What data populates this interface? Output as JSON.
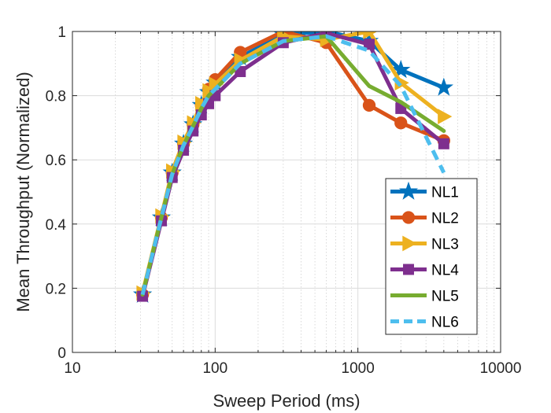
{
  "chart_data": {
    "type": "line",
    "title": "",
    "xlabel": "Sweep Period (ms)",
    "ylabel": "Mean Throughput (Normalized)",
    "xscale": "log",
    "xlim": [
      10,
      10000
    ],
    "ylim": [
      0,
      1
    ],
    "xticks": [
      10,
      100,
      1000,
      10000
    ],
    "xtick_labels": [
      "10",
      "100",
      "1000",
      "10000"
    ],
    "yticks": [
      0,
      0.2,
      0.4,
      0.6,
      0.8,
      1
    ],
    "ytick_labels": [
      "0",
      "0.2",
      "0.4",
      "0.6",
      "0.8",
      "1"
    ],
    "grid": "on (major and minor)",
    "legend_position": "bottom-right",
    "series": [
      {
        "name": "NL1",
        "color": "#0072BD",
        "marker": "star",
        "dash": "solid",
        "x": [
          31,
          42,
          50,
          60,
          70,
          80,
          90,
          100,
          150,
          300,
          600,
          1200,
          2000,
          4000
        ],
        "values": [
          0.18,
          0.42,
          0.56,
          0.65,
          0.71,
          0.77,
          0.81,
          0.84,
          0.92,
          0.99,
          1.0,
          0.97,
          0.88,
          0.825
        ]
      },
      {
        "name": "NL2",
        "color": "#D95319",
        "marker": "circle",
        "dash": "solid",
        "x": [
          31,
          42,
          50,
          60,
          70,
          80,
          90,
          100,
          150,
          300,
          600,
          1200,
          2000,
          4000
        ],
        "values": [
          0.18,
          0.42,
          0.56,
          0.65,
          0.71,
          0.77,
          0.82,
          0.85,
          0.935,
          1.0,
          0.965,
          0.77,
          0.715,
          0.66
        ]
      },
      {
        "name": "NL3",
        "color": "#EDB120",
        "marker": "triangle-right",
        "dash": "solid",
        "x": [
          31,
          42,
          50,
          60,
          70,
          80,
          90,
          100,
          150,
          300,
          600,
          1200,
          2000,
          4000
        ],
        "values": [
          0.185,
          0.425,
          0.565,
          0.655,
          0.715,
          0.775,
          0.815,
          0.835,
          0.91,
          0.985,
          0.975,
          1.0,
          0.84,
          0.735
        ]
      },
      {
        "name": "NL4",
        "color": "#7E2F8E",
        "marker": "square",
        "dash": "solid",
        "x": [
          31,
          42,
          50,
          60,
          70,
          80,
          90,
          100,
          150,
          300,
          600,
          1200,
          2000,
          4000
        ],
        "values": [
          0.175,
          0.41,
          0.545,
          0.63,
          0.69,
          0.74,
          0.775,
          0.8,
          0.875,
          0.965,
          0.995,
          0.96,
          0.76,
          0.65
        ]
      },
      {
        "name": "NL5",
        "color": "#77AC30",
        "marker": "none",
        "dash": "solid",
        "x": [
          31,
          42,
          50,
          60,
          70,
          80,
          90,
          100,
          150,
          300,
          600,
          1200,
          2000,
          4000
        ],
        "values": [
          0.18,
          0.42,
          0.555,
          0.645,
          0.705,
          0.76,
          0.8,
          0.82,
          0.9,
          0.97,
          0.985,
          0.83,
          0.78,
          0.69
        ]
      },
      {
        "name": "NL6",
        "color": "#4DBEEE",
        "marker": "none",
        "dash": "dashed",
        "x": [
          31,
          42,
          50,
          60,
          70,
          80,
          90,
          100,
          150,
          300,
          600,
          1200,
          2000,
          4000
        ],
        "values": [
          0.18,
          0.42,
          0.555,
          0.645,
          0.705,
          0.76,
          0.8,
          0.82,
          0.9,
          0.97,
          0.985,
          0.94,
          0.83,
          0.56
        ]
      }
    ]
  }
}
